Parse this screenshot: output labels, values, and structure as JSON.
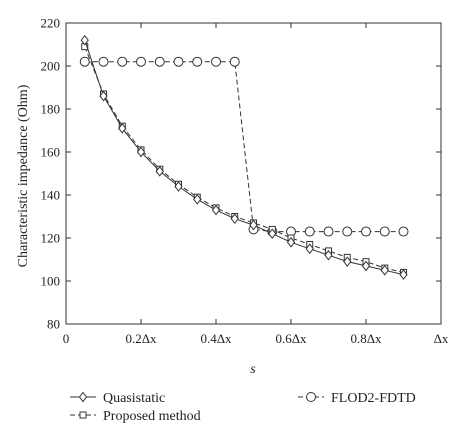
{
  "chart_data": {
    "type": "line",
    "ylabel": "Characteristic impedance (Ohm)",
    "xlabel": "s",
    "xlim": [
      0,
      1.0
    ],
    "ylim": [
      80,
      220
    ],
    "x_ticks": [
      {
        "value": 0,
        "label": "0"
      },
      {
        "value": 0.2,
        "label": "0.2Δx"
      },
      {
        "value": 0.4,
        "label": "0.4Δx"
      },
      {
        "value": 0.6,
        "label": "0.6Δx"
      },
      {
        "value": 0.8,
        "label": "0.8Δx"
      },
      {
        "value": 1.0,
        "label": "Δx"
      }
    ],
    "y_ticks": [
      80,
      100,
      120,
      140,
      160,
      180,
      200,
      220
    ],
    "grid": false,
    "legend_placement": "below",
    "series": [
      {
        "name": "Quasistatic",
        "marker": "diamond",
        "dash": "solid",
        "x": [
          0.05,
          0.1,
          0.15,
          0.2,
          0.25,
          0.3,
          0.35,
          0.4,
          0.45,
          0.5,
          0.55,
          0.6,
          0.65,
          0.7,
          0.75,
          0.8,
          0.85,
          0.9
        ],
        "y": [
          212,
          186,
          171,
          160,
          151,
          144,
          138,
          133,
          129,
          126,
          122,
          118,
          115,
          112,
          109,
          107,
          105,
          103
        ]
      },
      {
        "name": "Proposed method",
        "marker": "square",
        "dash": "dashed",
        "x": [
          0.05,
          0.1,
          0.15,
          0.2,
          0.25,
          0.3,
          0.35,
          0.4,
          0.45,
          0.5,
          0.55,
          0.6,
          0.65,
          0.7,
          0.75,
          0.8,
          0.85,
          0.9
        ],
        "y": [
          209,
          187,
          172,
          161,
          152,
          145,
          139,
          134,
          130,
          127,
          124,
          120,
          117,
          114,
          111,
          109,
          106,
          104
        ]
      },
      {
        "name": "FLOD2-FDTD",
        "marker": "circle",
        "dash": "dashed",
        "x": [
          0.05,
          0.1,
          0.15,
          0.2,
          0.25,
          0.3,
          0.35,
          0.4,
          0.45,
          0.5,
          0.55,
          0.6,
          0.65,
          0.7,
          0.75,
          0.8,
          0.85,
          0.9
        ],
        "y": [
          202,
          202,
          202,
          202,
          202,
          202,
          202,
          202,
          202,
          124,
          123,
          123,
          123,
          123,
          123,
          123,
          123,
          123
        ]
      }
    ]
  }
}
